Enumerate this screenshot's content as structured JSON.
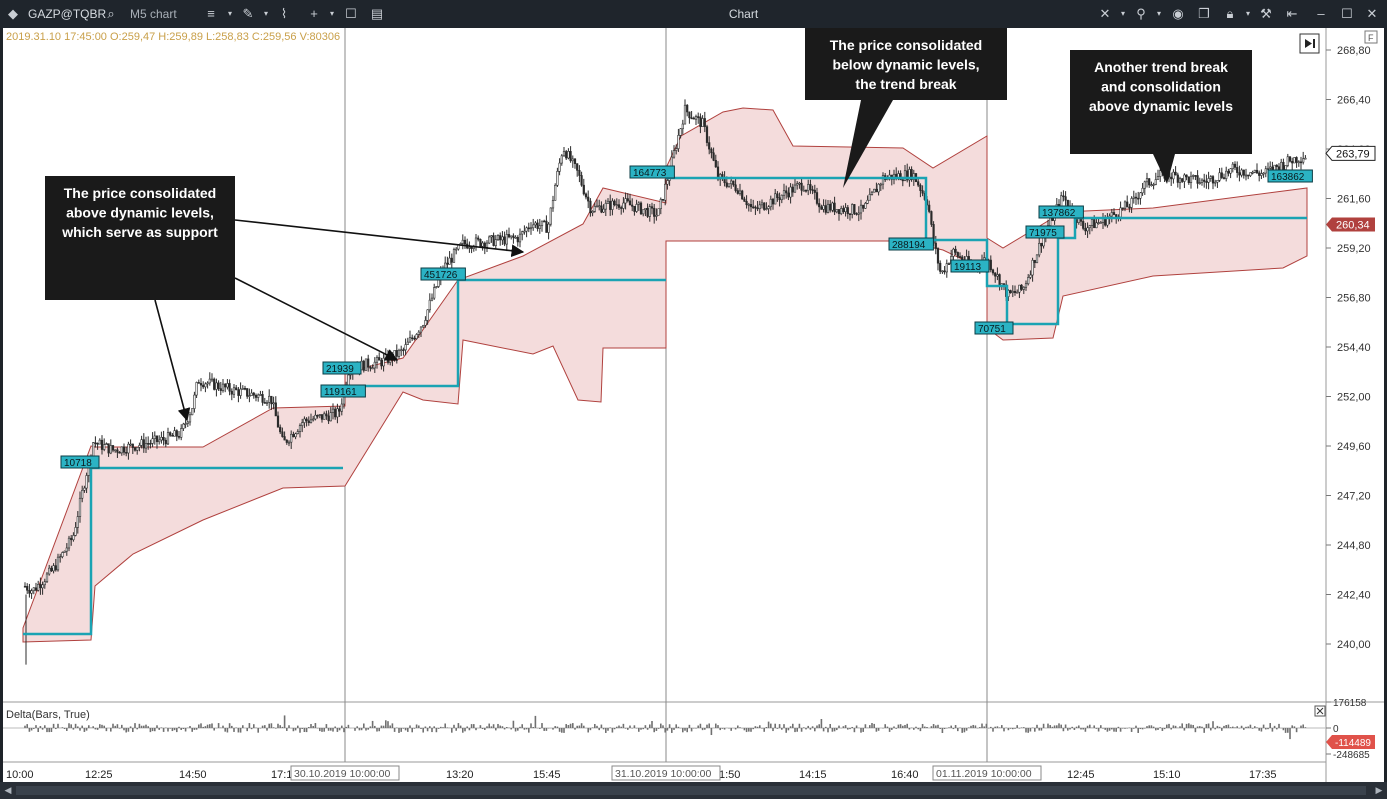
{
  "window": {
    "symbol": "GAZP@TQBR",
    "chart_name": "M5 chart",
    "title": "Chart"
  },
  "info_line": "2019.31.10 17:45:00 O:259,47 H:259,89 L:258,83 C:259,56 V:80306",
  "price_axis": {
    "ticks": [
      "268,80",
      "266,40",
      "264,00",
      "261,60",
      "259,20",
      "256,80",
      "254,40",
      "252,00",
      "249,60",
      "247,20",
      "244,80",
      "242,40",
      "240,00"
    ],
    "current_price": "263,79",
    "other_price": "260,34"
  },
  "time_axis": {
    "ticks": [
      "10:00",
      "12:25",
      "14:50",
      "17:1",
      "13:20",
      "15:45",
      "1:50",
      "14:15",
      "16:40",
      "12:45",
      "15:10",
      "17:35"
    ],
    "session_labels": [
      "30.10.2019 10:00:00",
      "31.10.2019 10:00:00",
      "01.11.2019 10:00:00"
    ]
  },
  "level_labels": [
    "10718",
    "21939",
    "119161",
    "451726",
    "164773",
    "288194",
    "19113",
    "70751",
    "71975",
    "137862",
    "163862"
  ],
  "annotations": {
    "callout_support": "The price consolidated above dynamic levels, which serve as support",
    "callout_break": "The price consolidated below dynamic levels, the trend break",
    "callout_another": "Another trend break and consolidation above dynamic levels"
  },
  "indicator": {
    "name": "Delta(Bars, True)",
    "ticks": [
      "176158",
      "0",
      "-248685"
    ],
    "current_value": "-114489"
  },
  "colors": {
    "level_line": "#1aa3b3",
    "band_fill": "#f4dcdc",
    "band_edge": "#b0413e",
    "candle": "#2b2b2b",
    "callout_bg": "#1a1a1a",
    "info_text": "#c9a04a"
  }
}
